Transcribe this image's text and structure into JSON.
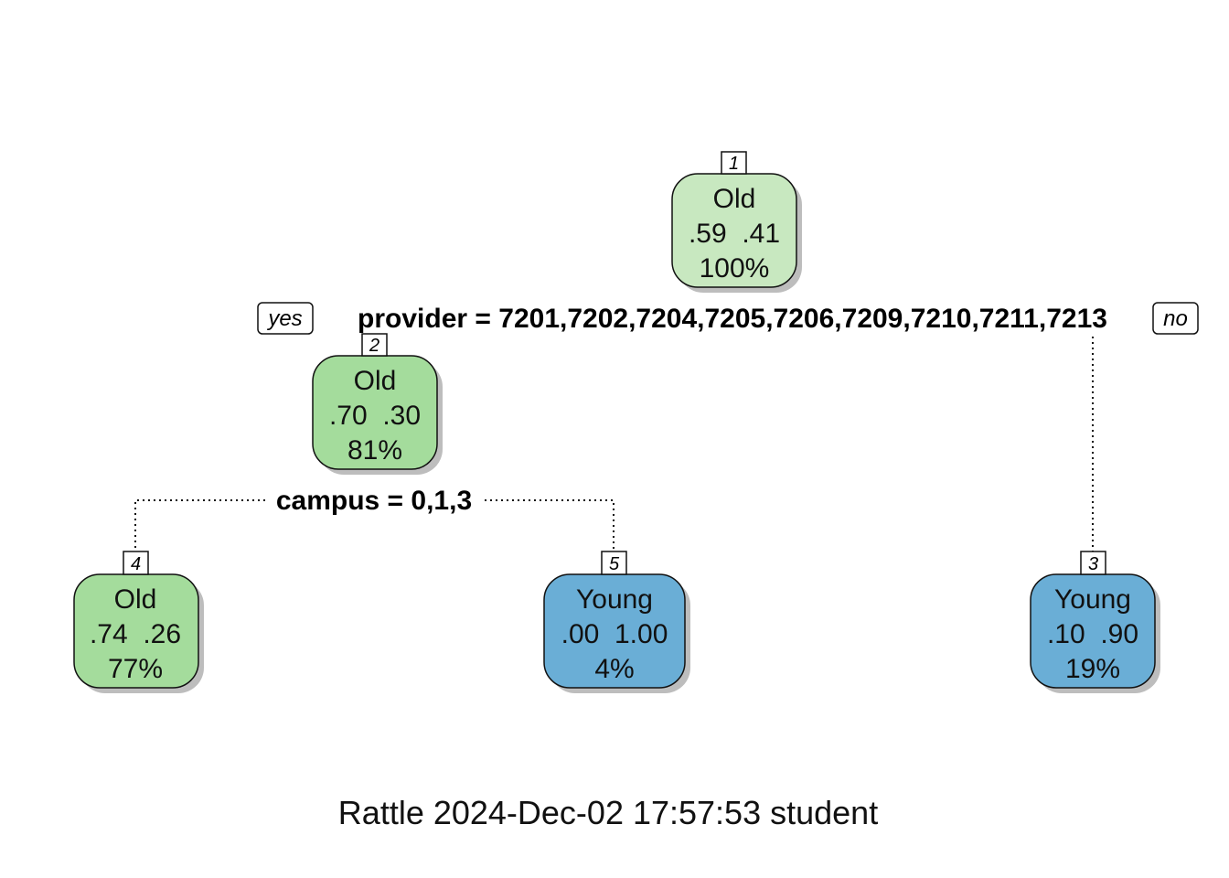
{
  "colors": {
    "old_light": "#c8e8c0",
    "old_mid": "#a4dc9c",
    "young": "#6aaed6",
    "edge": "#111111",
    "shadow": "#bdbdbd"
  },
  "nodes": [
    {
      "id": "1",
      "label": "Old",
      "probs": ".59  .41",
      "pct": "100%",
      "color": "old_light"
    },
    {
      "id": "2",
      "label": "Old",
      "probs": ".70  .30",
      "pct": "81%",
      "color": "old_mid"
    },
    {
      "id": "3",
      "label": "Young",
      "probs": ".10  .90",
      "pct": "19%",
      "color": "young"
    },
    {
      "id": "4",
      "label": "Old",
      "probs": ".74  .26",
      "pct": "77%",
      "color": "old_mid"
    },
    {
      "id": "5",
      "label": "Young",
      "probs": ".00  1.00",
      "pct": "4%",
      "color": "young"
    }
  ],
  "splits": {
    "root": "provider = 7201,7202,7204,7205,7206,7209,7210,7211,7213",
    "node2": "campus = 0,1,3"
  },
  "branch_labels": {
    "yes": "yes",
    "no": "no"
  },
  "caption": "Rattle 2024-Dec-02 17:57:53 student"
}
